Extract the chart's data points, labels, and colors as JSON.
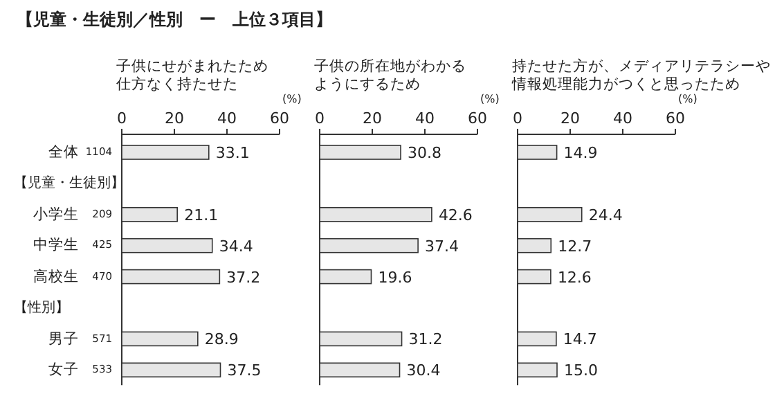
{
  "chart_data": [
    {
      "type": "bar",
      "orientation": "horizontal",
      "title": "【児童・生徒別／性別　ー　上位３項目】",
      "subtitle": "子供にせがまれたため仕方なく持たせた",
      "xlabel": "(%)",
      "categories": [
        "全体",
        null,
        "小学生",
        "中学生",
        "高校生",
        null,
        "男子",
        "女子"
      ],
      "values": [
        33.1,
        null,
        21.1,
        34.4,
        37.2,
        null,
        28.9,
        37.5
      ],
      "value_labels": [
        "33.1",
        null,
        "21.1",
        "34.4",
        "37.2",
        null,
        "28.9",
        "37.5"
      ],
      "color": "#e6e6e6",
      "xlim": [
        0,
        60
      ],
      "xticks": [
        0,
        20,
        40,
        60
      ],
      "annotations": [
        "1104",
        "【児童・生徒別】",
        "209",
        "425",
        "470",
        "【性別】",
        "571",
        "533"
      ]
    },
    {
      "type": "bar",
      "orientation": "horizontal",
      "title": "子供の所在地がわかるようにするため",
      "xlabel": "(%)",
      "categories": [
        null,
        null,
        null,
        null,
        null,
        null,
        null,
        null
      ],
      "values": [
        30.8,
        null,
        42.6,
        37.4,
        19.6,
        null,
        31.2,
        30.4
      ],
      "value_labels": [
        "30.8",
        null,
        "42.6",
        "37.4",
        "19.6",
        null,
        "31.2",
        "30.4"
      ],
      "color": "#e6e6e6",
      "xlim": [
        0,
        60
      ],
      "xticks": [
        0,
        20,
        40,
        60
      ],
      "tick_labels": "x"
    },
    {
      "type": "bar",
      "orientation": "horizontal",
      "title": "持たせた方が、メディアリテラシーや情報処理能力がつくと思ったため",
      "xlabel": "(%)",
      "categories": [
        null,
        null,
        null,
        null,
        null,
        null,
        null,
        null
      ],
      "values": [
        14.9,
        null,
        24.4,
        12.7,
        12.6,
        null,
        14.7,
        15.0
      ],
      "value_labels": [
        "14.9",
        null,
        "24.4",
        "12.7",
        "12.6",
        null,
        "14.7",
        "15.0"
      ],
      "color": "#e6e6e6",
      "xlim": [
        0,
        60
      ],
      "xticks": [
        0,
        20,
        40,
        60
      ],
      "tick_labels": "x"
    }
  ]
}
